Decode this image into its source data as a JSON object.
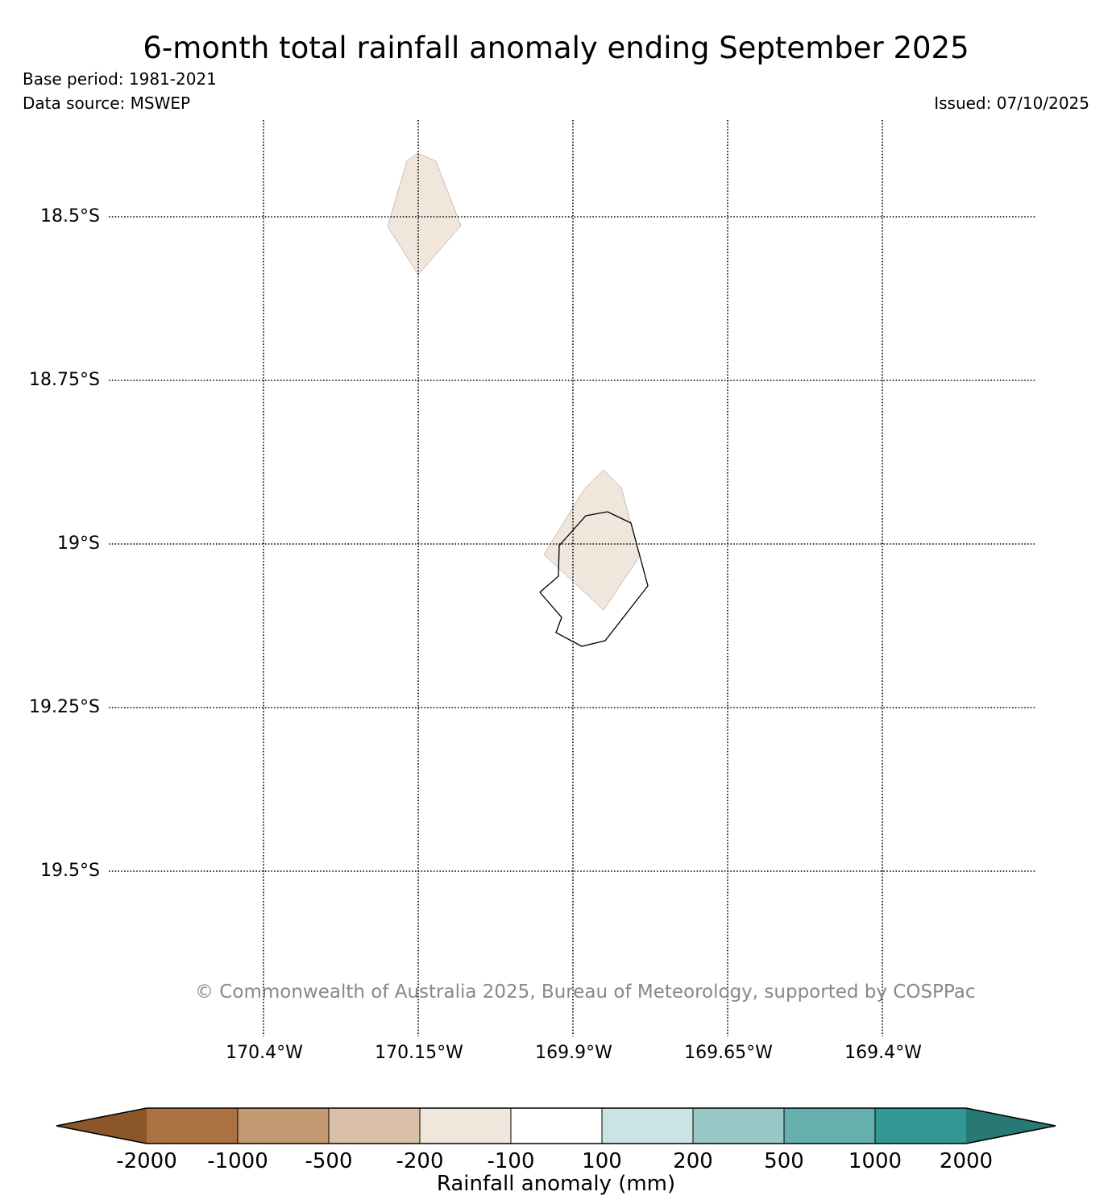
{
  "header": {
    "title": "6-month total rainfall anomaly ending September 2025",
    "base_period": "Base period: 1981-2021",
    "data_source": "Data source: MSWEP",
    "issued": "Issued: 07/10/2025"
  },
  "map": {
    "lat_labels": [
      "18.5°S",
      "18.75°S",
      "19°S",
      "19.25°S",
      "19.5°S"
    ],
    "lon_labels": [
      "170.4°W",
      "170.15°W",
      "169.9°W",
      "169.65°W",
      "169.4°W"
    ],
    "grid_style": "dotted",
    "anomaly_fill_color": "#f0e6dc",
    "anomaly_category": "-200 to -100",
    "coastline": "Niue"
  },
  "colorbar": {
    "title": "Rainfall anomaly (mm)",
    "tick_labels": [
      "-2000",
      "-1000",
      "-500",
      "-200",
      "-100",
      "100",
      "200",
      "500",
      "1000",
      "2000"
    ],
    "colors": [
      "#8c5728",
      "#a97240",
      "#c49a72",
      "#d9c0a6",
      "#f0e6dc",
      "#ffffff",
      "#cbe3e2",
      "#98c9c7",
      "#65b0ad",
      "#329894",
      "#287874"
    ]
  },
  "footer": {
    "copyright": "© Commonwealth of Australia 2025, Bureau of Meteorology, supported by COSPPac"
  }
}
